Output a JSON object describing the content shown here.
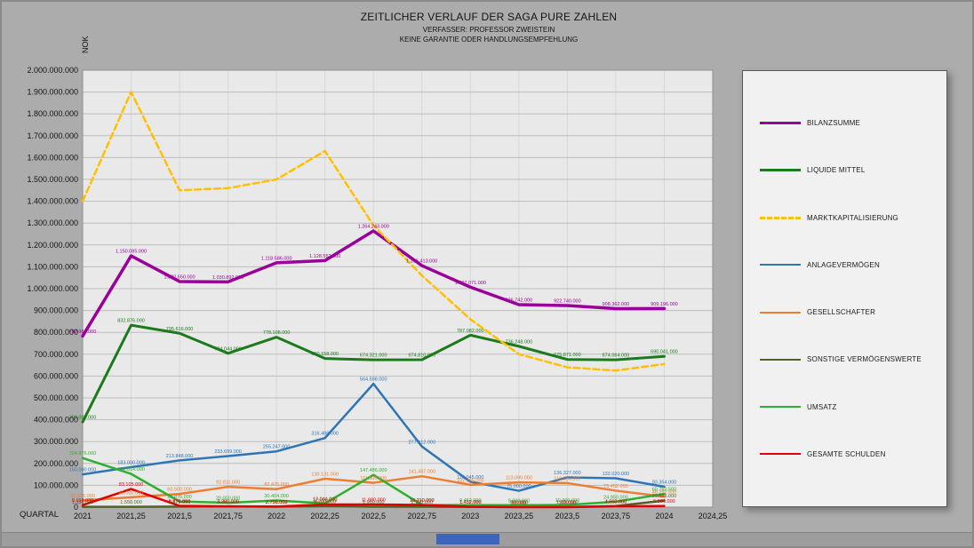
{
  "header": {
    "subtitle1": "VERFASSER: PROFESSOR ZWEISTEIN",
    "subtitle2": "KEINE GARANTIE ODER HANDLUNGSEMPFEHLUNG"
  },
  "footer": {
    "accent_color": "#3D66B8"
  },
  "chart_data": {
    "type": "line",
    "title": "ZEITLICHER VERLAUF DER SAGA PURE ZAHLEN",
    "x_label": "QUARTAL",
    "y_label": "NOK",
    "grid": true,
    "legend_position": "right",
    "ylim": [
      0,
      2000000000
    ],
    "y_tick_step": 100000000,
    "y_tick_labels": [
      "0",
      "100.000.000",
      "200.000.000",
      "300.000.000",
      "400.000.000",
      "500.000.000",
      "600.000.000",
      "700.000.000",
      "800.000.000",
      "900.000.000",
      "1.000.000.000",
      "1.100.000.000",
      "1.200.000.000",
      "1.300.000.000",
      "1.400.000.000",
      "1.500.000.000",
      "1.600.000.000",
      "1.700.000.000",
      "1.800.000.000",
      "1.900.000.000",
      "2.000.000.000"
    ],
    "x": [
      2021,
      2021.25,
      2021.5,
      2021.75,
      2022,
      2022.25,
      2022.5,
      2022.75,
      2023,
      2023.25,
      2023.5,
      2023.75,
      2024
    ],
    "x_tick_labels": [
      "2021",
      "2021,25",
      "2021,5",
      "2021,75",
      "2022",
      "2022,25",
      "2022,5",
      "2022,75",
      "2023",
      "2023,25",
      "2023,5",
      "2023,75",
      "2024",
      "2024,25"
    ],
    "series": [
      {
        "name": "BILANZSUMME",
        "color": "#990099",
        "style": "solid",
        "width": 3.5,
        "labeled": true,
        "values": [
          782963000,
          1150085000,
          1032650000,
          1030892000,
          1118586000,
          1128552000,
          1264243000,
          1105413000,
          1007071000,
          926742000,
          922740000,
          908362000,
          909196000
        ]
      },
      {
        "name": "LIQUIDE MITTEL",
        "color": "#1B7A1B",
        "style": "solid",
        "width": 3,
        "labeled": true,
        "values": [
          390000000,
          832876000,
          795616000,
          704044000,
          778108000,
          680158000,
          674321000,
          674810000,
          787082000,
          736248000,
          675871000,
          674064000,
          690041000
        ]
      },
      {
        "name": "MARKTKAPITALISIERUNG",
        "color": "#FFC000",
        "style": "dashed",
        "width": 2.5,
        "labeled": false,
        "values": [
          1400000000,
          1900000000,
          1450000000,
          1460000000,
          1500000000,
          1630000000,
          1290000000,
          1060000000,
          860000000,
          700000000,
          640000000,
          625000000,
          655000000
        ]
      },
      {
        "name": "ANLAGEVERMÖGEN",
        "color": "#2E75B6",
        "style": "solid",
        "width": 2.5,
        "labeled": true,
        "values": [
          150000000,
          183000000,
          213848000,
          233699000,
          255247000,
          316486000,
          564598000,
          277412000,
          116045000,
          75000000,
          136327000,
          132020000,
          93354000
        ]
      },
      {
        "name": "GESELLSCHAFTER",
        "color": "#ED7D31",
        "style": "solid",
        "width": 2.5,
        "labeled": true,
        "values": [
          30936000,
          45000000,
          60500000,
          92811000,
          82475000,
          130131000,
          111500000,
          141487000,
          102185000,
          113090000,
          110034000,
          75452000,
          48292500
        ]
      },
      {
        "name": "SONSTIGE VERMÖGENSWERTE",
        "color": "#4F6228",
        "style": "solid",
        "width": 2.5,
        "labeled": true,
        "values": [
          1336000,
          1550000,
          2576000,
          3330000,
          2756000,
          4700000,
          1980000,
          2100000,
          1452000,
          900000,
          1030000,
          4950000,
          29826000
        ]
      },
      {
        "name": "UMSATZ",
        "color": "#2FAF2F",
        "style": "solid",
        "width": 2.5,
        "labeled": true,
        "values": [
          224976000,
          152014000,
          25876000,
          20000000,
          30464000,
          17044000,
          147486000,
          10210000,
          9452000,
          9000000,
          10300000,
          24950000,
          60762500
        ]
      },
      {
        "name": "GESAMTE SCHULDEN",
        "color": "#E00000",
        "style": "solid",
        "width": 2.5,
        "labeled": true,
        "values": [
          9158000,
          83105000,
          5876000,
          3360000,
          2756000,
          12000000,
          11980000,
          10210000,
          1452000,
          90000,
          103000,
          4060000,
          5086000
        ]
      }
    ]
  }
}
